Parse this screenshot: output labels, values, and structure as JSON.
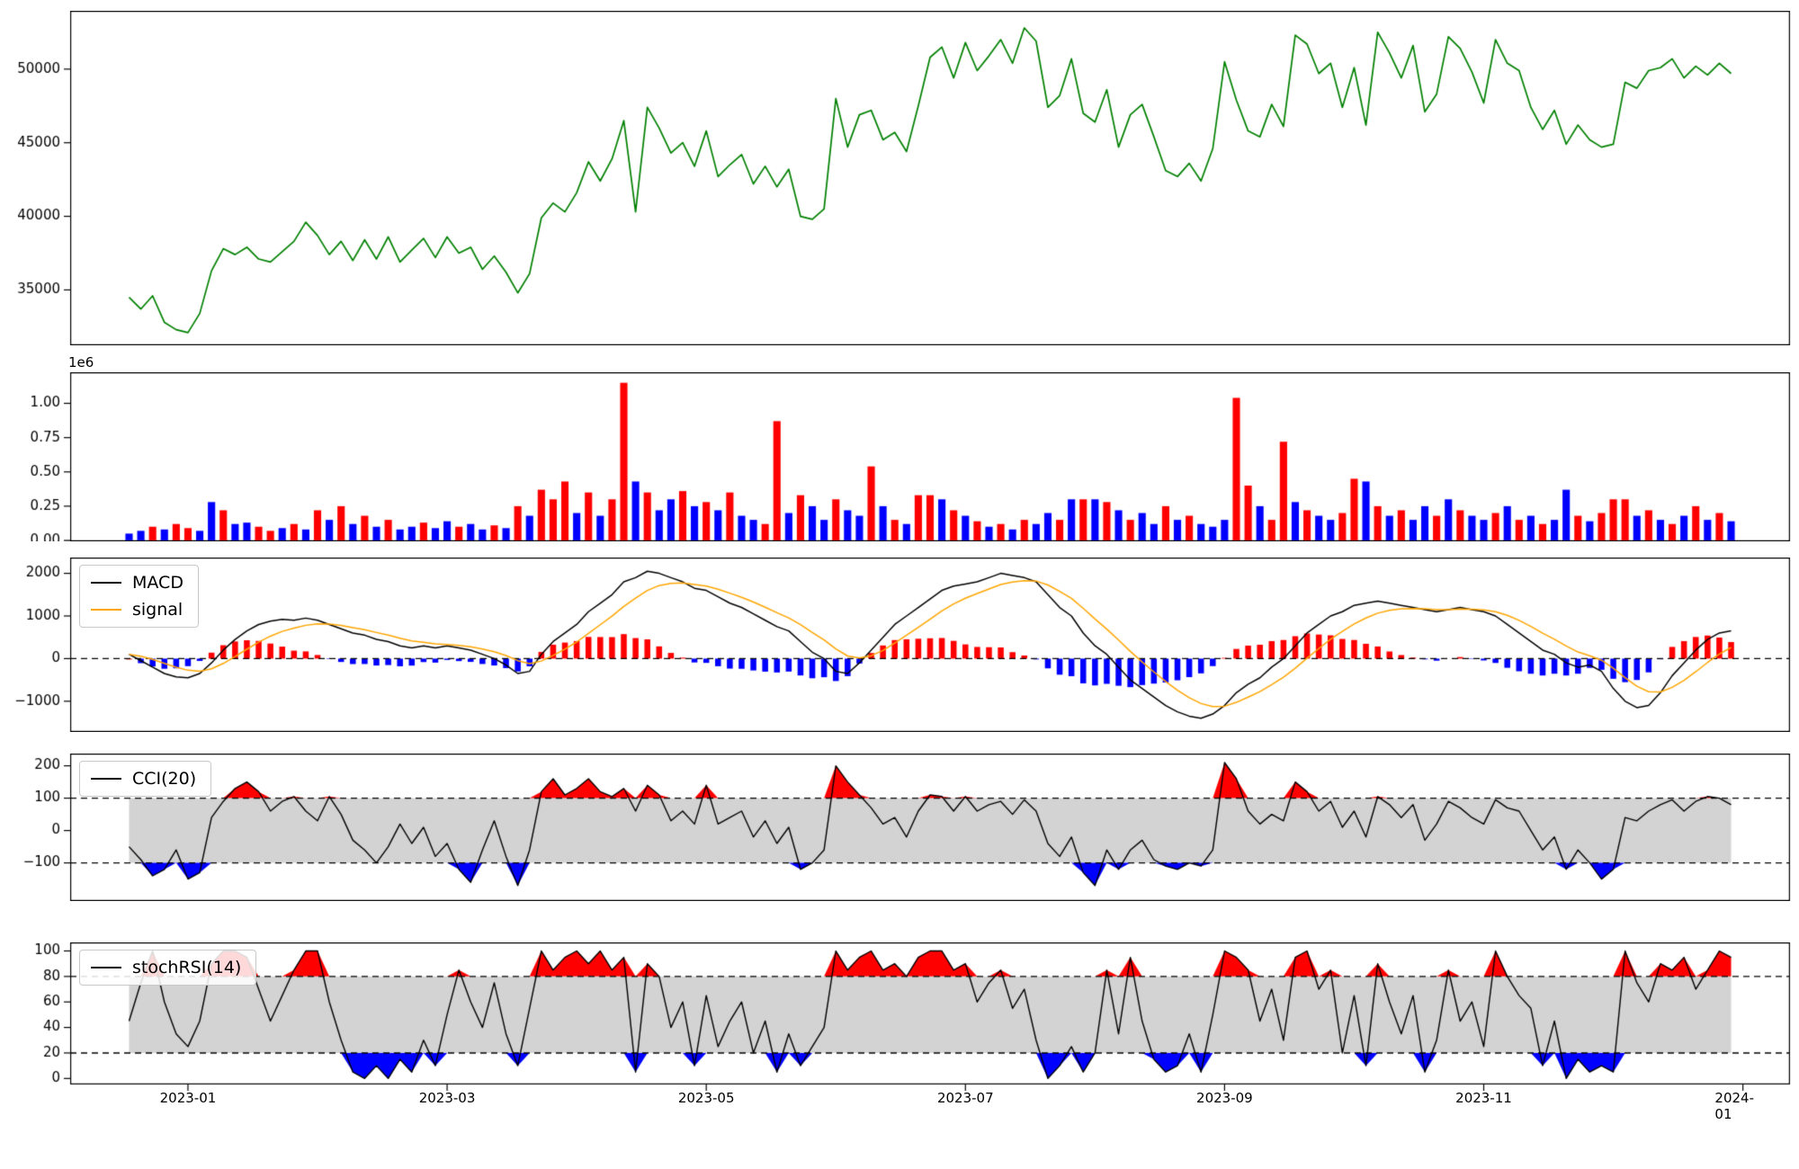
{
  "figure": {
    "background": "#ffffff"
  },
  "x_axis": {
    "domain": [
      -5,
      141
    ],
    "tick_positions": [
      5,
      27,
      49,
      71,
      93,
      115,
      137
    ],
    "tick_labels": [
      "2023-01",
      "2023-03",
      "2023-05",
      "2023-07",
      "2023-09",
      "2023-11",
      "2024-01"
    ]
  },
  "chart_data": [
    {
      "type": "line",
      "name": "price",
      "ylim": [
        31300,
        53900
      ],
      "yticks": [
        35000,
        40000,
        45000,
        50000
      ],
      "series": [
        {
          "name": "close",
          "color": "#008000",
          "values": [
            34500,
            33700,
            34600,
            32800,
            32300,
            32100,
            33400,
            36300,
            37800,
            37400,
            37900,
            37100,
            36900,
            37600,
            38300,
            39600,
            38700,
            37400,
            38300,
            37000,
            38400,
            37100,
            38600,
            36900,
            37700,
            38500,
            37200,
            38600,
            37500,
            37900,
            36400,
            37300,
            36200,
            34800,
            36100,
            39900,
            40900,
            40300,
            41600,
            43700,
            42400,
            43900,
            46500,
            40300,
            47400,
            46000,
            44300,
            45000,
            43400,
            45800,
            42700,
            43500,
            44200,
            42200,
            43400,
            42000,
            43200,
            40000,
            39800,
            40500,
            48000,
            44700,
            46900,
            47200,
            45200,
            45700,
            44400,
            47500,
            50800,
            51500,
            49400,
            51800,
            49900,
            50900,
            52000,
            50400,
            52800,
            51900,
            47400,
            48200,
            50700,
            47000,
            46400,
            48600,
            44700,
            46900,
            47600,
            45400,
            43100,
            42700,
            43600,
            42400,
            44600,
            50500,
            47900,
            45800,
            45400,
            47600,
            46100,
            52300,
            51700,
            49700,
            50400,
            47400,
            50100,
            46200,
            52500,
            51100,
            49400,
            51600,
            47100,
            48300,
            52200,
            51400,
            49800,
            47700,
            52000,
            50400,
            49900,
            47400,
            45900,
            47200,
            44900,
            46200,
            45200,
            44700,
            44900,
            49100,
            48700,
            49900,
            50100,
            50700,
            49400,
            50200,
            49600,
            50400,
            49700
          ]
        }
      ]
    },
    {
      "type": "bar",
      "name": "volume",
      "offset_label": "1e6",
      "ylim": [
        0,
        1.22
      ],
      "yticks": [
        0,
        0.25,
        0.5,
        0.75,
        1.0
      ],
      "ytick_labels": [
        "0.00",
        "0.25",
        "0.50",
        "0.75",
        "1.00"
      ],
      "color_map": {
        "r": "#ff0000",
        "b": "#0000ff"
      },
      "bar_colors": "bbrbrrbbrbbrrbrbrbrbrbrbbrbbrbbrbrbrrrbrbrrbrbbrbrbrbbrrbrbbrbbrbrbrrbrbrbrbrbbrbrbrbrbbrbrbbbrrbrrbrbbrrbrbrbbrbrbbrbrbrbbrbrrrbrbrbrbrb",
      "values": [
        0.05,
        0.07,
        0.1,
        0.08,
        0.12,
        0.09,
        0.07,
        0.28,
        0.22,
        0.12,
        0.13,
        0.1,
        0.07,
        0.09,
        0.12,
        0.08,
        0.22,
        0.15,
        0.25,
        0.12,
        0.18,
        0.1,
        0.15,
        0.08,
        0.1,
        0.13,
        0.09,
        0.14,
        0.1,
        0.12,
        0.08,
        0.11,
        0.09,
        0.25,
        0.18,
        0.37,
        0.3,
        0.43,
        0.2,
        0.35,
        0.18,
        0.3,
        1.15,
        0.43,
        0.35,
        0.22,
        0.3,
        0.36,
        0.25,
        0.28,
        0.22,
        0.35,
        0.18,
        0.15,
        0.12,
        0.87,
        0.2,
        0.33,
        0.25,
        0.15,
        0.3,
        0.22,
        0.18,
        0.54,
        0.25,
        0.15,
        0.12,
        0.33,
        0.33,
        0.3,
        0.22,
        0.18,
        0.14,
        0.1,
        0.12,
        0.08,
        0.15,
        0.12,
        0.2,
        0.15,
        0.3,
        0.3,
        0.3,
        0.28,
        0.22,
        0.15,
        0.2,
        0.12,
        0.25,
        0.15,
        0.18,
        0.12,
        0.1,
        0.15,
        1.04,
        0.4,
        0.25,
        0.15,
        0.72,
        0.28,
        0.22,
        0.18,
        0.15,
        0.2,
        0.45,
        0.43,
        0.25,
        0.18,
        0.22,
        0.15,
        0.25,
        0.18,
        0.3,
        0.22,
        0.18,
        0.15,
        0.2,
        0.25,
        0.15,
        0.18,
        0.12,
        0.15,
        0.37,
        0.18,
        0.14,
        0.2,
        0.3,
        0.3,
        0.18,
        0.22,
        0.15,
        0.12,
        0.18,
        0.25,
        0.15,
        0.2,
        0.14
      ]
    },
    {
      "type": "line+bar",
      "name": "macd",
      "legend": [
        "MACD",
        "signal"
      ],
      "macd_color": "#000000",
      "signal_color": "#ffa500",
      "signal_period": 6,
      "hist_colors": {
        "positive": "#ff0000",
        "negative": "#0000ff"
      },
      "ylim": [
        -1700,
        2350
      ],
      "yticks": [
        -1000,
        0,
        1000,
        2000
      ],
      "ytick_labels": [
        "−1000",
        "0",
        "1000",
        "2000"
      ],
      "zero_line_dashed": true,
      "macd": [
        100,
        -50,
        -200,
        -350,
        -430,
        -450,
        -350,
        -100,
        200,
        450,
        650,
        800,
        880,
        920,
        900,
        950,
        900,
        800,
        700,
        600,
        550,
        450,
        400,
        300,
        250,
        300,
        250,
        300,
        250,
        200,
        100,
        0,
        -150,
        -350,
        -300,
        100,
        400,
        600,
        800,
        1100,
        1300,
        1500,
        1800,
        1900,
        2050,
        2000,
        1900,
        1800,
        1650,
        1600,
        1450,
        1300,
        1200,
        1050,
        900,
        750,
        650,
        400,
        150,
        0,
        -300,
        -350,
        -100,
        200,
        500,
        800,
        1000,
        1200,
        1400,
        1600,
        1700,
        1750,
        1800,
        1900,
        2000,
        1950,
        1900,
        1800,
        1500,
        1200,
        1000,
        600,
        300,
        100,
        -200,
        -500,
        -700,
        -900,
        -1100,
        -1250,
        -1350,
        -1400,
        -1300,
        -1100,
        -800,
        -600,
        -450,
        -200,
        0,
        300,
        600,
        800,
        1000,
        1100,
        1250,
        1300,
        1350,
        1300,
        1250,
        1200,
        1150,
        1100,
        1150,
        1200,
        1150,
        1100,
        1000,
        800,
        600,
        400,
        200,
        100,
        -100,
        -200,
        -150,
        -300,
        -700,
        -1000,
        -1150,
        -1100,
        -800,
        -400,
        -100,
        200,
        450,
        600,
        650
      ]
    },
    {
      "type": "line",
      "name": "cci",
      "legend": [
        "CCI(20)"
      ],
      "line_color": "#000000",
      "band": [
        -100,
        100
      ],
      "band_color": "#d3d3d3",
      "above_fill": "#ff0000",
      "below_fill": "#0000ff",
      "ylim": [
        -215,
        235
      ],
      "yticks": [
        -100,
        0,
        100,
        200
      ],
      "ytick_labels": [
        "−100",
        "0",
        "100",
        "200"
      ],
      "values": [
        -50,
        -90,
        -140,
        -120,
        -60,
        -150,
        -130,
        40,
        90,
        130,
        150,
        120,
        60,
        90,
        105,
        60,
        30,
        105,
        50,
        -30,
        -60,
        -100,
        -50,
        20,
        -40,
        10,
        -80,
        -40,
        -120,
        -160,
        -60,
        30,
        -80,
        -170,
        -60,
        120,
        160,
        110,
        130,
        160,
        120,
        105,
        130,
        60,
        140,
        110,
        30,
        60,
        20,
        140,
        20,
        40,
        60,
        -20,
        30,
        -40,
        10,
        -120,
        -100,
        -60,
        200,
        150,
        110,
        70,
        20,
        40,
        -20,
        60,
        110,
        105,
        60,
        105,
        60,
        80,
        90,
        50,
        95,
        60,
        -40,
        -80,
        -20,
        -130,
        -170,
        -60,
        -120,
        -60,
        -30,
        -90,
        -110,
        -120,
        -100,
        -110,
        -60,
        210,
        160,
        60,
        20,
        50,
        30,
        150,
        120,
        60,
        90,
        10,
        60,
        -20,
        105,
        80,
        40,
        80,
        -30,
        20,
        90,
        70,
        40,
        20,
        95,
        70,
        60,
        0,
        -60,
        -20,
        -120,
        -60,
        -100,
        -150,
        -120,
        40,
        30,
        60,
        80,
        95,
        60,
        90,
        105,
        100,
        80
      ]
    },
    {
      "type": "line",
      "name": "stochrsi",
      "legend": [
        "stochRSI(14)"
      ],
      "line_color": "#000000",
      "band": [
        20,
        80
      ],
      "band_color": "#d3d3d3",
      "above_fill": "#ff0000",
      "below_fill": "#0000ff",
      "ylim": [
        -4,
        106
      ],
      "yticks": [
        0,
        20,
        40,
        60,
        80,
        100
      ],
      "ytick_labels": [
        "0",
        "20",
        "40",
        "60",
        "80",
        "100"
      ],
      "values": [
        45,
        75,
        100,
        60,
        35,
        25,
        45,
        90,
        100,
        100,
        95,
        70,
        45,
        65,
        85,
        100,
        100,
        60,
        30,
        5,
        0,
        10,
        0,
        15,
        5,
        30,
        10,
        50,
        85,
        60,
        40,
        75,
        35,
        10,
        55,
        100,
        85,
        95,
        100,
        90,
        100,
        85,
        95,
        5,
        90,
        80,
        40,
        60,
        10,
        65,
        25,
        45,
        60,
        20,
        45,
        5,
        35,
        10,
        25,
        40,
        100,
        85,
        95,
        100,
        85,
        90,
        80,
        95,
        100,
        100,
        85,
        90,
        60,
        75,
        85,
        55,
        70,
        30,
        0,
        10,
        25,
        5,
        20,
        85,
        35,
        95,
        45,
        15,
        5,
        10,
        35,
        5,
        50,
        100,
        95,
        85,
        45,
        70,
        30,
        95,
        100,
        70,
        85,
        20,
        65,
        10,
        90,
        60,
        35,
        65,
        5,
        30,
        85,
        45,
        60,
        25,
        100,
        80,
        65,
        55,
        10,
        45,
        0,
        15,
        5,
        10,
        5,
        100,
        75,
        60,
        90,
        85,
        95,
        70,
        85,
        100,
        95
      ]
    }
  ]
}
